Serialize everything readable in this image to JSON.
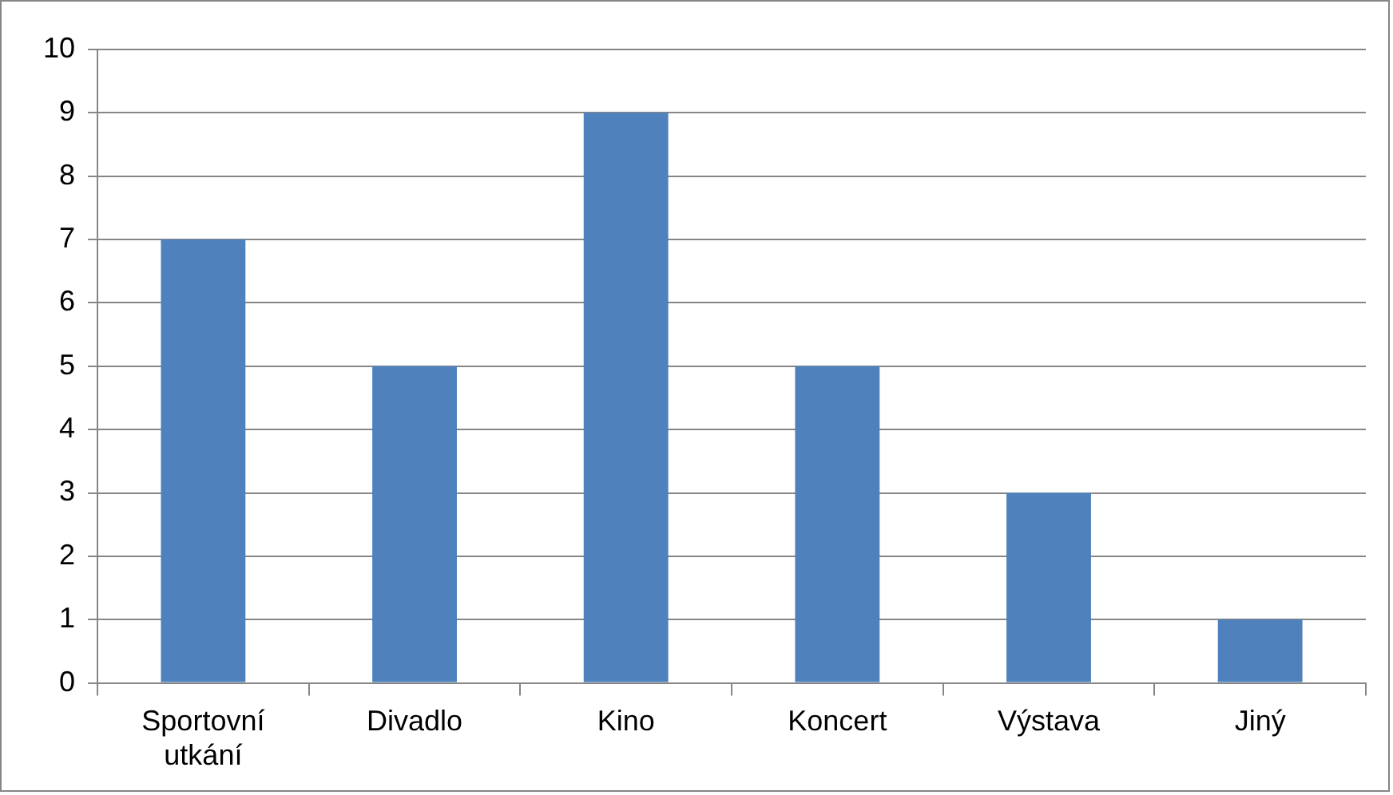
{
  "chart_data": {
    "type": "bar",
    "categories": [
      "Sportovní utkání",
      "Divadlo",
      "Kino",
      "Koncert",
      "Výstava",
      "Jiný"
    ],
    "values": [
      7,
      5,
      9,
      5,
      3,
      1
    ],
    "color": "#4f81bd",
    "ylim": [
      0,
      10
    ],
    "yticks": [
      0,
      1,
      2,
      3,
      4,
      5,
      6,
      7,
      8,
      9,
      10
    ],
    "grid": "y",
    "legend": false
  }
}
